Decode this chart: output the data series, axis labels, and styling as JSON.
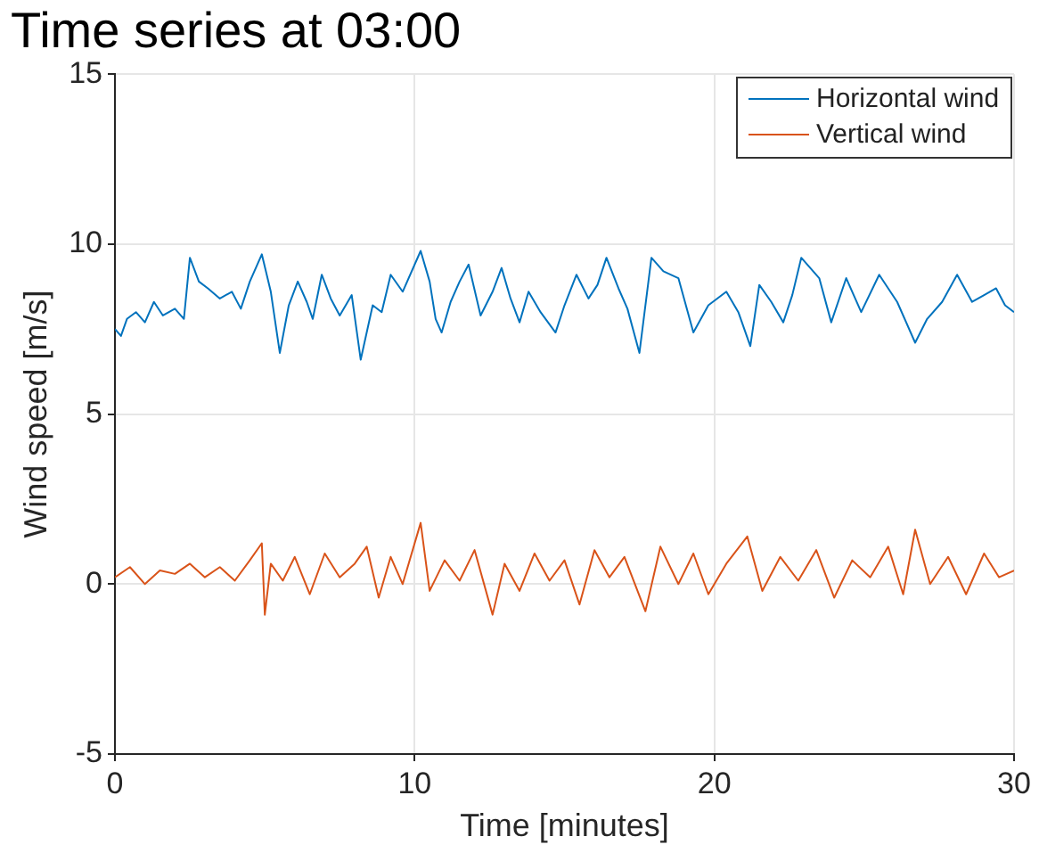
{
  "chart_data": {
    "type": "line",
    "title": "Time series at 03:00",
    "xlabel": "Time [minutes]",
    "ylabel": "Wind speed [m/s]",
    "xlim": [
      0,
      30
    ],
    "xticks": [
      0,
      10,
      20,
      30
    ],
    "ylim": [
      -5,
      15
    ],
    "yticks": [
      -5,
      0,
      5,
      10,
      15
    ],
    "grid": true,
    "legend": "top right",
    "marker": "none",
    "line_style": "solid",
    "series": [
      {
        "name": "Horizontal wind",
        "color": "#0072bd",
        "x": [
          0,
          0.2,
          0.4,
          0.7,
          1.0,
          1.3,
          1.6,
          2.0,
          2.3,
          2.5,
          2.8,
          3.1,
          3.5,
          3.9,
          4.2,
          4.5,
          4.9,
          5.2,
          5.5,
          5.8,
          6.1,
          6.4,
          6.6,
          6.9,
          7.2,
          7.5,
          7.9,
          8.2,
          8.6,
          8.9,
          9.2,
          9.6,
          10.2,
          10.5,
          10.7,
          10.9,
          11.2,
          11.5,
          11.8,
          12.2,
          12.6,
          12.9,
          13.2,
          13.5,
          13.8,
          14.2,
          14.7,
          15.0,
          15.4,
          15.8,
          16.1,
          16.4,
          16.8,
          17.1,
          17.5,
          17.9,
          18.3,
          18.8,
          19.3,
          19.8,
          20.4,
          20.8,
          21.2,
          21.5,
          21.9,
          22.3,
          22.6,
          22.9,
          23.2,
          23.5,
          23.9,
          24.4,
          24.9,
          25.5,
          26.1,
          26.7,
          27.1,
          27.6,
          28.1,
          28.6,
          29.0,
          29.4,
          29.7,
          30
        ],
        "values": [
          7.5,
          7.3,
          7.8,
          8.0,
          7.7,
          8.3,
          7.9,
          8.1,
          7.8,
          9.6,
          8.9,
          8.7,
          8.4,
          8.6,
          8.1,
          8.9,
          9.7,
          8.6,
          6.8,
          8.2,
          8.9,
          8.3,
          7.8,
          9.1,
          8.4,
          7.9,
          8.5,
          6.6,
          8.2,
          8.0,
          9.1,
          8.6,
          9.8,
          8.9,
          7.8,
          7.4,
          8.3,
          8.9,
          9.4,
          7.9,
          8.6,
          9.3,
          8.4,
          7.7,
          8.6,
          8.0,
          7.4,
          8.2,
          9.1,
          8.4,
          8.8,
          9.6,
          8.7,
          8.1,
          6.8,
          9.6,
          9.2,
          9.0,
          7.4,
          8.2,
          8.6,
          8.0,
          7.0,
          8.8,
          8.3,
          7.7,
          8.5,
          9.6,
          9.3,
          9.0,
          7.7,
          9.0,
          8.0,
          9.1,
          8.3,
          7.1,
          7.8,
          8.3,
          9.1,
          8.3,
          8.5,
          8.7,
          8.2,
          8.0
        ]
      },
      {
        "name": "Vertical wind",
        "color": "#d95319",
        "x": [
          0,
          0.5,
          1.0,
          1.5,
          2.0,
          2.5,
          3.0,
          3.5,
          4.0,
          4.5,
          4.9,
          5.0,
          5.2,
          5.6,
          6.0,
          6.5,
          7.0,
          7.5,
          8.0,
          8.4,
          8.8,
          9.2,
          9.6,
          10.2,
          10.5,
          11.0,
          11.5,
          12.0,
          12.6,
          13.0,
          13.5,
          14.0,
          14.5,
          15.0,
          15.5,
          16.0,
          16.5,
          17.0,
          17.7,
          18.2,
          18.8,
          19.3,
          19.8,
          20.4,
          21.1,
          21.6,
          22.2,
          22.8,
          23.4,
          24.0,
          24.6,
          25.2,
          25.8,
          26.3,
          26.7,
          27.2,
          27.8,
          28.4,
          29.0,
          29.5,
          30
        ],
        "values": [
          0.2,
          0.5,
          0.0,
          0.4,
          0.3,
          0.6,
          0.2,
          0.5,
          0.1,
          0.7,
          1.2,
          -0.9,
          0.6,
          0.1,
          0.8,
          -0.3,
          0.9,
          0.2,
          0.6,
          1.1,
          -0.4,
          0.8,
          0.0,
          1.8,
          -0.2,
          0.7,
          0.1,
          1.0,
          -0.9,
          0.6,
          -0.2,
          0.9,
          0.1,
          0.7,
          -0.6,
          1.0,
          0.2,
          0.8,
          -0.8,
          1.1,
          0.0,
          0.9,
          -0.3,
          0.6,
          1.4,
          -0.2,
          0.8,
          0.1,
          1.0,
          -0.4,
          0.7,
          0.2,
          1.1,
          -0.3,
          1.6,
          0.0,
          0.8,
          -0.3,
          0.9,
          0.2,
          0.4
        ]
      }
    ]
  }
}
